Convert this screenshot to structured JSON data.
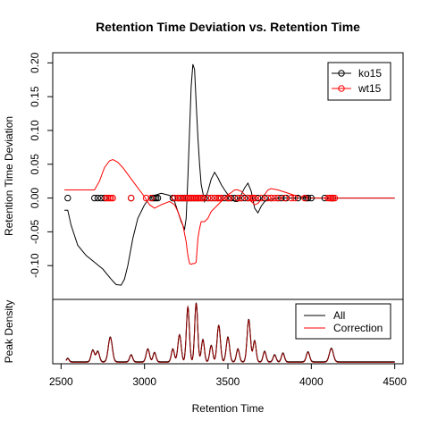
{
  "chart_data": {
    "type": "line",
    "title": "Retention Time Deviation vs. Retention Time",
    "xlabel": "Retention Time",
    "xlim": [
      2450,
      4550
    ],
    "x_ticks": [
      2500,
      3000,
      3500,
      4000,
      4500
    ],
    "main_panel": {
      "ylabel": "Retention Time Deviation",
      "ylim": [
        -0.15,
        0.215
      ],
      "y_ticks": [
        -0.1,
        -0.05,
        0.0,
        0.05,
        0.1,
        0.15,
        0.2
      ],
      "y_tick_labels": [
        "-0.10",
        "-0.05",
        "0.00",
        "0.05",
        "0.10",
        "0.15",
        "0.20"
      ],
      "legend": {
        "placement": "top-right",
        "entries": [
          "ko15",
          "wt15"
        ]
      },
      "series": [
        {
          "name": "ko15",
          "color": "#000000",
          "line_x": [
            2520,
            2540,
            2560,
            2600,
            2650,
            2700,
            2750,
            2800,
            2830,
            2860,
            2880,
            2900,
            2930,
            2960,
            3000,
            3030,
            3060,
            3100,
            3150,
            3180,
            3200,
            3220,
            3240,
            3250,
            3260,
            3270,
            3280,
            3290,
            3300,
            3310,
            3320,
            3330,
            3340,
            3360,
            3380,
            3400,
            3420,
            3440,
            3460,
            3480,
            3500,
            3520,
            3540,
            3560,
            3580,
            3600,
            3620,
            3640,
            3660,
            3680,
            3700,
            3720,
            3750,
            3800,
            3850,
            3900,
            3950,
            4000,
            4050,
            4100,
            4150,
            4200,
            4300,
            4400,
            4500
          ],
          "line_y": [
            -0.018,
            -0.018,
            -0.04,
            -0.07,
            -0.085,
            -0.095,
            -0.105,
            -0.12,
            -0.128,
            -0.129,
            -0.12,
            -0.1,
            -0.06,
            -0.03,
            -0.01,
            0.0,
            0.004,
            0.007,
            0.004,
            -0.005,
            -0.02,
            -0.035,
            -0.046,
            -0.03,
            0.03,
            0.1,
            0.165,
            0.198,
            0.19,
            0.14,
            0.09,
            0.05,
            0.02,
            -0.005,
            0.01,
            0.028,
            0.038,
            0.03,
            0.02,
            0.012,
            0.005,
            0.0,
            -0.005,
            -0.005,
            0.005,
            0.015,
            0.022,
            0.01,
            -0.015,
            -0.022,
            -0.012,
            -0.005,
            -0.002,
            0.0,
            0.0,
            0.0,
            0.0,
            0.0,
            0.0,
            0.0,
            0.0,
            0.0,
            0.0,
            0.0,
            0.0
          ],
          "points_x": [
            2540,
            2700,
            2720,
            2740,
            2760,
            2920,
            3050,
            3060,
            3070,
            3080,
            3170,
            3180,
            3200,
            3220,
            3230,
            3240,
            3260,
            3280,
            3300,
            3320,
            3340,
            3360,
            3380,
            3400,
            3420,
            3440,
            3460,
            3480,
            3500,
            3520,
            3540,
            3560,
            3580,
            3600,
            3620,
            3640,
            3660,
            3680,
            3720,
            3760,
            3800,
            3820,
            3850,
            3920,
            3970,
            3980,
            4000,
            4080,
            4120,
            4130
          ]
        },
        {
          "name": "wt15",
          "color": "#ff0000",
          "line_x": [
            2520,
            2600,
            2650,
            2700,
            2730,
            2760,
            2790,
            2810,
            2840,
            2870,
            2900,
            2930,
            2960,
            3000,
            3030,
            3060,
            3100,
            3150,
            3180,
            3200,
            3230,
            3250,
            3260,
            3270,
            3280,
            3290,
            3300,
            3310,
            3320,
            3330,
            3340,
            3360,
            3380,
            3400,
            3420,
            3440,
            3460,
            3480,
            3500,
            3520,
            3540,
            3560,
            3580,
            3600,
            3620,
            3640,
            3660,
            3680,
            3700,
            3720,
            3740,
            3760,
            3800,
            3850,
            3900,
            3950,
            4000,
            4050,
            4100,
            4150,
            4200,
            4300,
            4400,
            4500
          ],
          "line_y": [
            0.012,
            0.012,
            0.012,
            0.012,
            0.025,
            0.045,
            0.055,
            0.057,
            0.053,
            0.045,
            0.035,
            0.025,
            0.015,
            0.002,
            -0.01,
            -0.015,
            -0.01,
            -0.005,
            -0.01,
            -0.02,
            -0.04,
            -0.065,
            -0.085,
            -0.097,
            -0.098,
            -0.097,
            -0.097,
            -0.095,
            -0.06,
            -0.045,
            -0.035,
            -0.035,
            -0.03,
            -0.02,
            -0.015,
            -0.01,
            -0.005,
            0.0,
            0.005,
            0.008,
            0.012,
            0.012,
            0.01,
            0.005,
            0.0,
            -0.005,
            -0.01,
            -0.008,
            -0.002,
            0.005,
            0.012,
            0.014,
            0.012,
            0.008,
            0.004,
            0.002,
            0.0,
            0.0,
            0.0,
            0.0,
            0.0,
            0.0,
            0.0,
            0.0
          ],
          "points_x": [
            2770,
            2780,
            2790,
            2800,
            2810,
            2920,
            3010,
            3040,
            3180,
            3200,
            3210,
            3220,
            3240,
            3250,
            3260,
            3270,
            3280,
            3290,
            3300,
            3310,
            3320,
            3330,
            3340,
            3350,
            3380,
            3400,
            3420,
            3440,
            3450,
            3460,
            3500,
            3510,
            3560,
            3580,
            3620,
            3640,
            3650,
            3660,
            3700,
            3740,
            3760,
            3780,
            3800,
            3840,
            3880,
            3900,
            3960,
            4100,
            4110,
            4120,
            4130,
            4140
          ]
        }
      ]
    },
    "density_panel": {
      "ylabel": "Peak Density",
      "legend": {
        "placement": "top-right",
        "entries": [
          "All",
          "Correction"
        ]
      },
      "peaks": [
        {
          "x": 2540,
          "h": 0.06,
          "w": 8
        },
        {
          "x": 2690,
          "h": 0.2,
          "w": 10
        },
        {
          "x": 2720,
          "h": 0.18,
          "w": 10
        },
        {
          "x": 2795,
          "h": 0.42,
          "w": 12
        },
        {
          "x": 2920,
          "h": 0.12,
          "w": 9
        },
        {
          "x": 3020,
          "h": 0.22,
          "w": 10
        },
        {
          "x": 3060,
          "h": 0.16,
          "w": 9
        },
        {
          "x": 3170,
          "h": 0.22,
          "w": 9
        },
        {
          "x": 3210,
          "h": 0.46,
          "w": 10
        },
        {
          "x": 3260,
          "h": 0.93,
          "w": 9
        },
        {
          "x": 3310,
          "h": 1.0,
          "w": 9
        },
        {
          "x": 3350,
          "h": 0.38,
          "w": 9
        },
        {
          "x": 3400,
          "h": 0.28,
          "w": 9
        },
        {
          "x": 3445,
          "h": 0.62,
          "w": 10
        },
        {
          "x": 3500,
          "h": 0.42,
          "w": 10
        },
        {
          "x": 3560,
          "h": 0.22,
          "w": 9
        },
        {
          "x": 3625,
          "h": 0.72,
          "w": 10
        },
        {
          "x": 3660,
          "h": 0.36,
          "w": 9
        },
        {
          "x": 3720,
          "h": 0.18,
          "w": 9
        },
        {
          "x": 3780,
          "h": 0.12,
          "w": 9
        },
        {
          "x": 3830,
          "h": 0.15,
          "w": 9
        },
        {
          "x": 3980,
          "h": 0.17,
          "w": 10
        },
        {
          "x": 4120,
          "h": 0.23,
          "w": 12
        }
      ],
      "series": [
        {
          "name": "All",
          "color": "#000000"
        },
        {
          "name": "Correction",
          "color": "#8b0000"
        }
      ]
    }
  }
}
